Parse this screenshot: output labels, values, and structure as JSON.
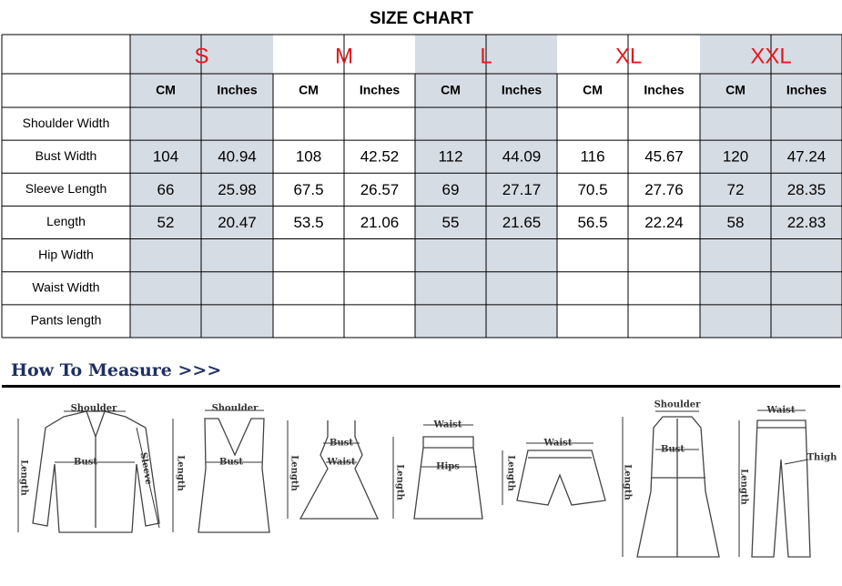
{
  "header": {
    "title": "SIZE CHART"
  },
  "table": {
    "sizes": [
      "S",
      "M",
      "L",
      "XL",
      "XXL"
    ],
    "units": [
      "CM",
      "Inches"
    ],
    "rows": [
      {
        "label": "Shoulder Width"
      },
      {
        "label": "Bust Width",
        "cells": [
          104,
          40.94,
          108,
          42.52,
          112,
          44.09,
          116,
          45.67,
          120,
          47.24
        ]
      },
      {
        "label": "Sleeve Length",
        "cells": [
          66,
          25.98,
          67.5,
          26.57,
          69,
          27.17,
          70.5,
          27.76,
          72,
          28.35
        ]
      },
      {
        "label": "Length",
        "cells": [
          52,
          20.47,
          53.5,
          21.06,
          55,
          21.65,
          56.5,
          22.24,
          58,
          22.83
        ]
      },
      {
        "label": "Hip Width"
      },
      {
        "label": "Waist Width"
      },
      {
        "label": "Pants length"
      }
    ]
  },
  "measure": {
    "title": "How To Measure >>>",
    "illustrations": [
      {
        "labels": [
          "Shoulder",
          "Bust",
          "Length",
          "Sleeve"
        ]
      },
      {
        "labels": [
          "Shoulder",
          "Bust",
          "Length"
        ]
      },
      {
        "labels": [
          "Bust",
          "Waist",
          "Length"
        ]
      },
      {
        "labels": [
          "Waist",
          "Hips",
          "Length"
        ]
      },
      {
        "labels": [
          "Waist",
          "Length"
        ]
      },
      {
        "labels": [
          "Shoulder",
          "Bust",
          "Length"
        ]
      },
      {
        "labels": [
          "Waist",
          "Thigh",
          "Length"
        ]
      }
    ]
  }
}
